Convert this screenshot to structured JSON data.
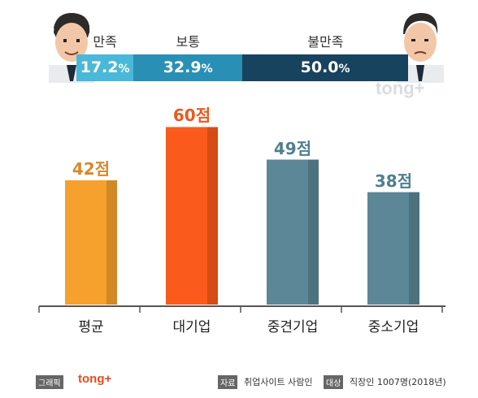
{
  "satisfaction": {
    "segments": [
      {
        "label": "만족",
        "value": 17.2,
        "text": "17.2",
        "unit": "%",
        "color": "#4ab8d8"
      },
      {
        "label": "보통",
        "value": 32.9,
        "text": "32.9",
        "unit": "%",
        "color": "#2a8fb5"
      },
      {
        "label": "불만족",
        "value": 50.0,
        "text": "50.0",
        "unit": "%",
        "color": "#17435f"
      }
    ]
  },
  "watermark": "tong+",
  "chart_data": {
    "type": "bar",
    "categories": [
      "평균",
      "대기업",
      "중견기업",
      "중소기업"
    ],
    "values": [
      42,
      60,
      49,
      38
    ],
    "value_labels": [
      "42점",
      "60점",
      "49점",
      "38점"
    ],
    "colors": [
      "#f6a02d",
      "#fa5a1b",
      "#5b8796",
      "#5b8796"
    ],
    "label_colors": [
      "#d7892b",
      "#ea5a1e",
      "#4f7f90",
      "#4f7f90"
    ],
    "title": "",
    "xlabel": "",
    "ylabel": "",
    "ylim": [
      0,
      70
    ],
    "grid": false
  },
  "footer": {
    "graphic_tag": "그래픽",
    "graphic_brand": "tong+",
    "source_tag": "자료",
    "source": "취업사이트 사람인",
    "target_tag": "대상",
    "target": "직장인 1007명(2018년)"
  }
}
